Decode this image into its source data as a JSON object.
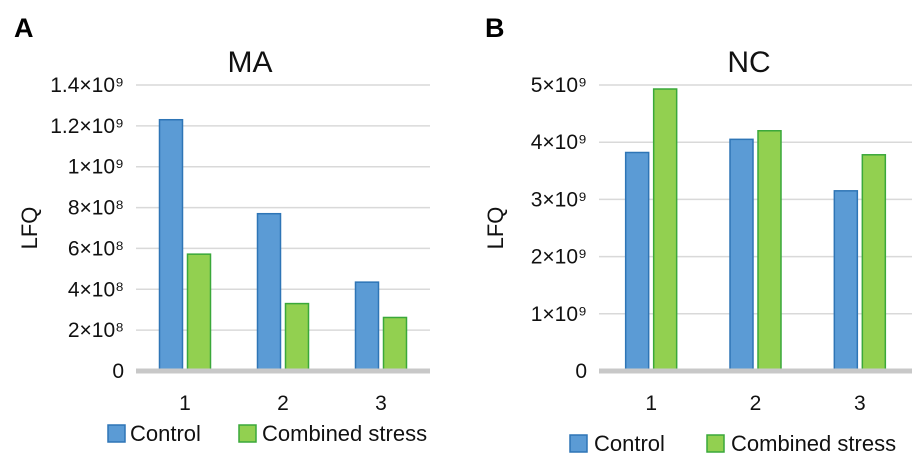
{
  "chart_data": [
    {
      "type": "bar",
      "panel_label": "A",
      "title": "MA",
      "ylabel": "LFQ",
      "xlabel": "",
      "categories": [
        "1",
        "2",
        "3"
      ],
      "ylim": [
        0,
        1400000000
      ],
      "yticks": [
        {
          "value": 0,
          "label": "0"
        },
        {
          "value": 200000000,
          "label": "2×10⁸"
        },
        {
          "value": 400000000,
          "label": "4×10⁸"
        },
        {
          "value": 600000000,
          "label": "6×10⁸"
        },
        {
          "value": 800000000,
          "label": "8×10⁸"
        },
        {
          "value": 1000000000,
          "label": "1×10⁹"
        },
        {
          "value": 1200000000,
          "label": "1.2×10⁹"
        },
        {
          "value": 1400000000,
          "label": "1.4×10⁹"
        }
      ],
      "series": [
        {
          "name": "Control",
          "color": "#5b9bd5",
          "stroke": "#2e75b6",
          "values": [
            1230000000,
            770000000,
            435000000
          ]
        },
        {
          "name": "Combined stress",
          "color": "#92d050",
          "stroke": "#3aa83a",
          "values": [
            572000000,
            330000000,
            262000000
          ]
        }
      ],
      "grid": true,
      "legend": "bottom"
    },
    {
      "type": "bar",
      "panel_label": "B",
      "title": "NC",
      "ylabel": "LFQ",
      "xlabel": "",
      "categories": [
        "1",
        "2",
        "3"
      ],
      "ylim": [
        0,
        5000000000
      ],
      "yticks": [
        {
          "value": 0,
          "label": "0"
        },
        {
          "value": 1000000000,
          "label": "1×10⁹"
        },
        {
          "value": 2000000000,
          "label": "2×10⁹"
        },
        {
          "value": 3000000000,
          "label": "3×10⁹"
        },
        {
          "value": 4000000000,
          "label": "4×10⁹"
        },
        {
          "value": 5000000000,
          "label": "5×10⁹"
        }
      ],
      "series": [
        {
          "name": "Control",
          "color": "#5b9bd5",
          "stroke": "#2e75b6",
          "values": [
            3820000000,
            4050000000,
            3150000000
          ]
        },
        {
          "name": "Combined stress",
          "color": "#92d050",
          "stroke": "#3aa83a",
          "values": [
            4930000000,
            4200000000,
            3780000000
          ]
        }
      ],
      "grid": true,
      "legend": "bottom"
    }
  ]
}
